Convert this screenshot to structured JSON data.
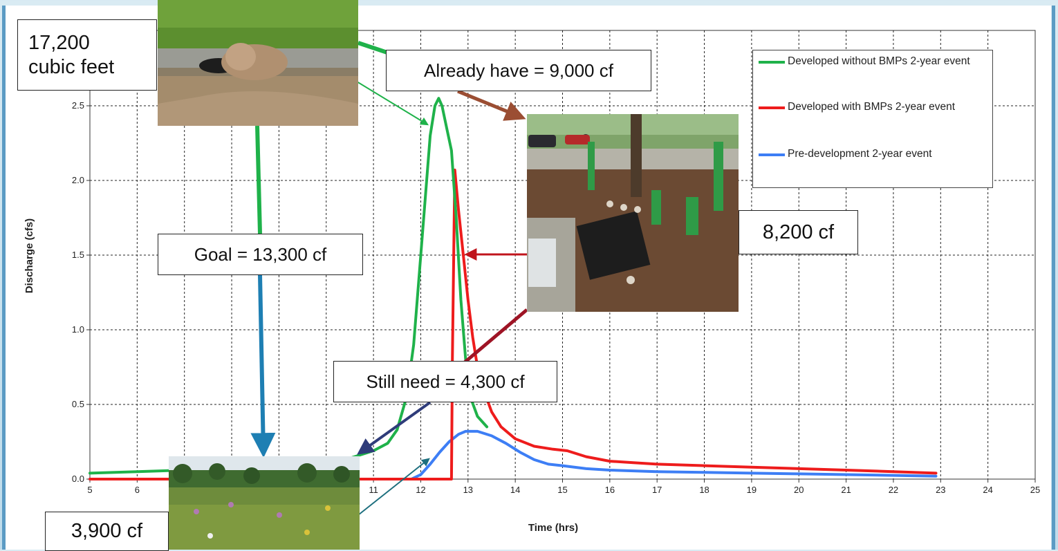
{
  "colors": {
    "green": "#1fb24a",
    "red": "#ee1c1c",
    "blue": "#3d7ef5",
    "grid": "#222222",
    "background": "#d3e8f1"
  },
  "chart_data": {
    "type": "line",
    "title": "",
    "xlabel": "Time (hrs)",
    "ylabel": "Discharge (cfs)",
    "xlim": [
      5,
      25
    ],
    "ylim": [
      0,
      2.8
    ],
    "x_ticks": [
      "5",
      "6",
      "7",
      "8",
      "9",
      "10",
      "11",
      "12",
      "13",
      "14",
      "15",
      "16",
      "17",
      "18",
      "19",
      "20",
      "21",
      "22",
      "23",
      "24",
      "25"
    ],
    "y_ticks": [
      "0.0",
      "0.5",
      "1.0",
      "1.5",
      "2.0",
      "2.5"
    ],
    "grid": true,
    "legend_position": "top-right",
    "series": [
      {
        "name": "Developed without BMPs 2-year event",
        "color": "#1fb24a",
        "points": [
          [
            5,
            0.04
          ],
          [
            6,
            0.05
          ],
          [
            7,
            0.06
          ],
          [
            8,
            0.07
          ],
          [
            9,
            0.09
          ],
          [
            10,
            0.12
          ],
          [
            10.5,
            0.14
          ],
          [
            11,
            0.19
          ],
          [
            11.3,
            0.24
          ],
          [
            11.5,
            0.33
          ],
          [
            11.7,
            0.55
          ],
          [
            11.85,
            0.9
          ],
          [
            12.0,
            1.5
          ],
          [
            12.1,
            1.9
          ],
          [
            12.2,
            2.3
          ],
          [
            12.3,
            2.5
          ],
          [
            12.38,
            2.55
          ],
          [
            12.45,
            2.5
          ],
          [
            12.55,
            2.35
          ],
          [
            12.65,
            2.2
          ],
          [
            12.75,
            1.75
          ],
          [
            12.85,
            1.2
          ],
          [
            12.95,
            0.8
          ],
          [
            13.05,
            0.55
          ],
          [
            13.2,
            0.42
          ],
          [
            13.4,
            0.35
          ]
        ]
      },
      {
        "name": "Developed with BMPs 2-year event",
        "color": "#ee1c1c",
        "points": [
          [
            5,
            0.0
          ],
          [
            12.65,
            0.0
          ],
          [
            12.67,
            0.8
          ],
          [
            12.72,
            2.07
          ],
          [
            12.8,
            1.8
          ],
          [
            12.9,
            1.5
          ],
          [
            13.0,
            1.2
          ],
          [
            13.1,
            0.95
          ],
          [
            13.2,
            0.75
          ],
          [
            13.35,
            0.58
          ],
          [
            13.5,
            0.45
          ],
          [
            13.7,
            0.35
          ],
          [
            14.0,
            0.27
          ],
          [
            14.4,
            0.22
          ],
          [
            14.8,
            0.2
          ],
          [
            15.1,
            0.19
          ],
          [
            15.5,
            0.15
          ],
          [
            16,
            0.12
          ],
          [
            16.5,
            0.11
          ],
          [
            17,
            0.1
          ],
          [
            18,
            0.09
          ],
          [
            19,
            0.08
          ],
          [
            20,
            0.07
          ],
          [
            21,
            0.06
          ],
          [
            22,
            0.05
          ],
          [
            22.9,
            0.04
          ]
        ]
      },
      {
        "name": "Pre-development 2-year event",
        "color": "#3d7ef5",
        "points": [
          [
            5,
            0.0
          ],
          [
            11.8,
            0.0
          ],
          [
            12.0,
            0.03
          ],
          [
            12.2,
            0.1
          ],
          [
            12.4,
            0.18
          ],
          [
            12.6,
            0.25
          ],
          [
            12.8,
            0.3
          ],
          [
            12.95,
            0.32
          ],
          [
            13.2,
            0.32
          ],
          [
            13.5,
            0.29
          ],
          [
            13.8,
            0.24
          ],
          [
            14.1,
            0.18
          ],
          [
            14.4,
            0.13
          ],
          [
            14.7,
            0.1
          ],
          [
            15.0,
            0.09
          ],
          [
            15.5,
            0.07
          ],
          [
            16,
            0.06
          ],
          [
            17,
            0.05
          ],
          [
            18,
            0.045
          ],
          [
            19,
            0.04
          ],
          [
            20,
            0.035
          ],
          [
            21,
            0.03
          ],
          [
            22,
            0.025
          ],
          [
            22.9,
            0.02
          ]
        ]
      }
    ]
  },
  "legend": {
    "items": [
      {
        "label": "Developed without BMPs 2-year event",
        "color": "#1fb24a"
      },
      {
        "label": "Developed with BMPs 2-year event",
        "color": "#ee1c1c"
      },
      {
        "label": "Pre-development 2-year event",
        "color": "#3d7ef5"
      }
    ]
  },
  "callouts": {
    "total_line1": "17,200",
    "total_line2": "cubic feet",
    "already_have": "Already have = 9,000 cf",
    "goal": "Goal = 13,300 cf",
    "still_need": "Still need = 4,300 cf",
    "rain_garden": "8,200 cf",
    "meadow": "3,900 cf"
  },
  "photos": {
    "storm_drain": "storm-drain-runoff-photo",
    "rain_garden": "rain-garden-volunteers-photo",
    "meadow": "wildflower-meadow-photo"
  },
  "arrow_colors": {
    "green": "#1fb24a",
    "brown": "#9b4e33",
    "red": "#c0141c",
    "dark_red": "#9e1425",
    "teal_blue": "#1e7fb3",
    "navy": "#2f3c7a",
    "teal": "#1d6f7e"
  }
}
